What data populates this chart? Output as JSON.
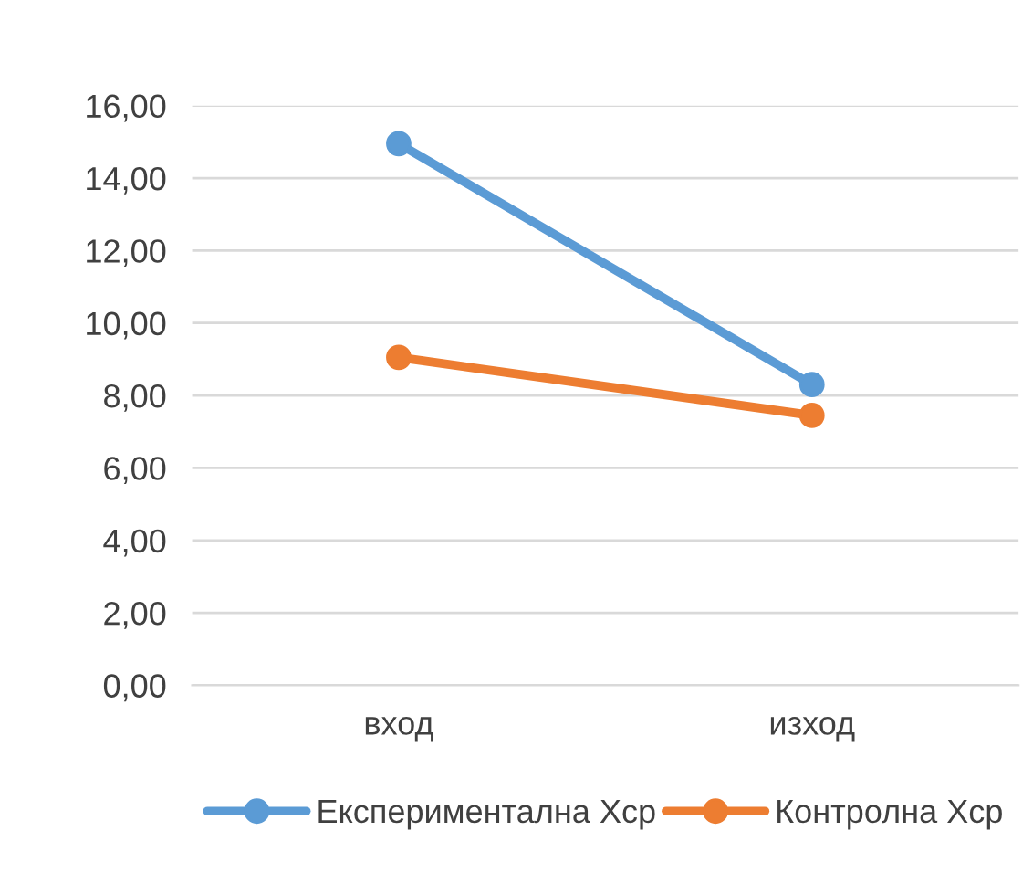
{
  "chart_data": {
    "type": "line",
    "categories": [
      "вход",
      "изход"
    ],
    "series": [
      {
        "name": "Експериментална Xср",
        "color": "#5b9bd5",
        "values": [
          14.95,
          8.3
        ]
      },
      {
        "name": "Контролна Xср",
        "color": "#ed7d31",
        "values": [
          9.05,
          7.45
        ]
      }
    ],
    "ylim": [
      0,
      16
    ],
    "yticks": [
      {
        "value": 0,
        "label": "0,00"
      },
      {
        "value": 2,
        "label": "2,00"
      },
      {
        "value": 4,
        "label": "4,00"
      },
      {
        "value": 6,
        "label": "6,00"
      },
      {
        "value": 8,
        "label": "8,00"
      },
      {
        "value": 10,
        "label": "10,00"
      },
      {
        "value": 12,
        "label": "12,00"
      },
      {
        "value": 14,
        "label": "14,00"
      },
      {
        "value": 16,
        "label": "16,00"
      }
    ],
    "grid": "y",
    "legend": "bottom",
    "marker": "circle",
    "line_style": "solid"
  }
}
